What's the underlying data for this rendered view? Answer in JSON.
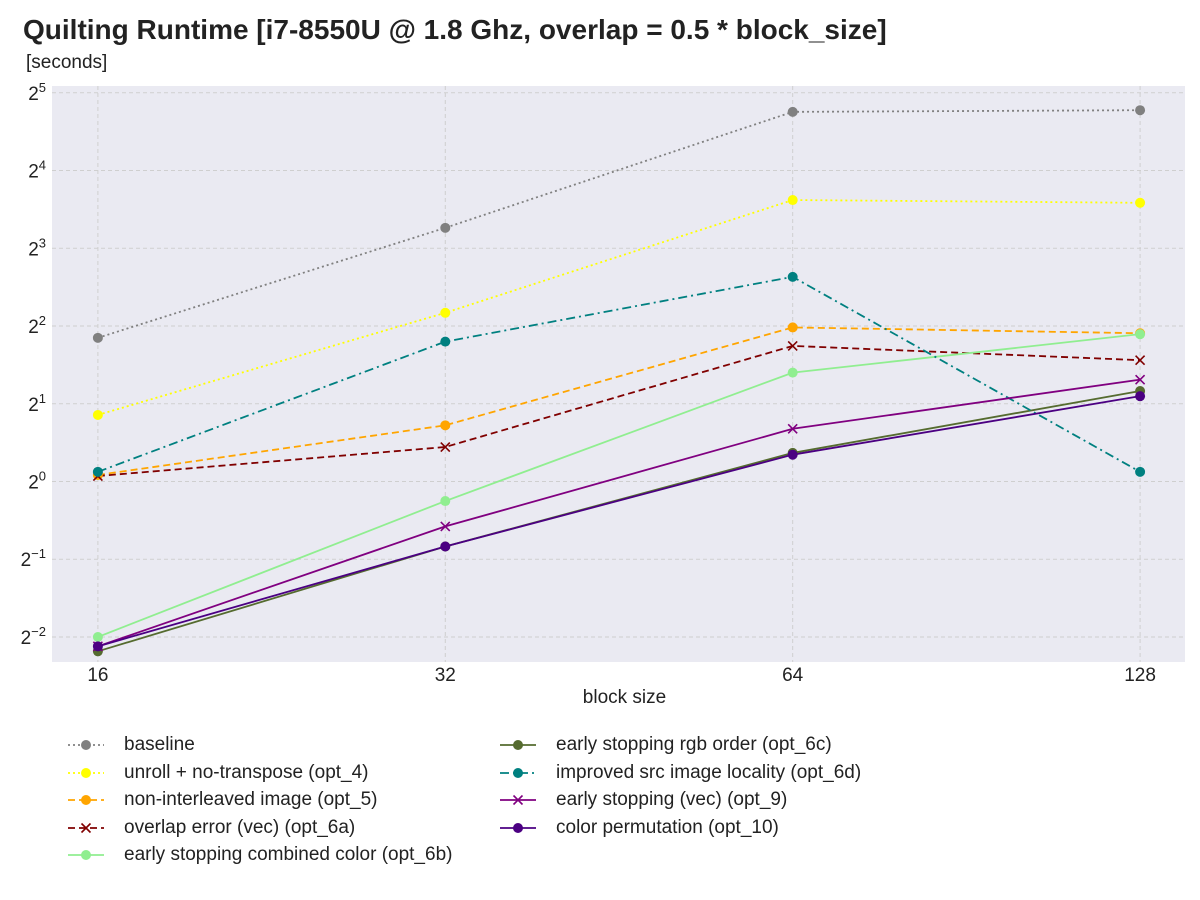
{
  "title": "Quilting Runtime [i7-8550U @ 1.8 Ghz, overlap = 0.5 * block_size]",
  "unit_label": "[seconds]",
  "chart_data": {
    "type": "line",
    "title": "Quilting Runtime [i7-8550U @ 1.8 Ghz, overlap = 0.5 * block_size]",
    "ylabel": "[seconds]",
    "xlabel": "block size",
    "x_scale": "log2",
    "y_scale": "log2",
    "x": [
      16,
      32,
      64,
      128
    ],
    "x_tick_labels": [
      "16",
      "32",
      "64",
      "128"
    ],
    "y_ticks": [
      {
        "base": "2",
        "exp": "5",
        "value": 32
      },
      {
        "base": "2",
        "exp": "4",
        "value": 16
      },
      {
        "base": "2",
        "exp": "3",
        "value": 8
      },
      {
        "base": "2",
        "exp": "2",
        "value": 4
      },
      {
        "base": "2",
        "exp": "1",
        "value": 2
      },
      {
        "base": "2",
        "exp": "0",
        "value": 1
      },
      {
        "base": "2",
        "exp": "−1",
        "value": 0.5
      },
      {
        "base": "2",
        "exp": "−2",
        "value": 0.25
      }
    ],
    "xlim": [
      14.6,
      140
    ],
    "ylim": [
      0.2,
      34
    ],
    "grid": true,
    "background": "#eaeaf2",
    "legend_position": "bottom",
    "series": [
      {
        "name": "baseline",
        "color": "#808080",
        "dash": "dotted",
        "marker": "circle",
        "values": [
          3.6,
          9.6,
          27.0,
          27.4
        ]
      },
      {
        "name": "unroll + no-transpose (opt_4)",
        "color": "#ffff00",
        "dash": "dotted",
        "marker": "circle",
        "values": [
          1.81,
          4.5,
          12.3,
          12.0
        ]
      },
      {
        "name": "non-interleaved image (opt_5)",
        "color": "#ffa500",
        "dash": "dashed",
        "marker": "circle",
        "values": [
          1.06,
          1.65,
          3.95,
          3.75
        ]
      },
      {
        "name": "overlap error (vec) (opt_6a)",
        "color": "#800000",
        "dash": "dashed",
        "marker": "x",
        "values": [
          1.05,
          1.36,
          3.35,
          2.95
        ]
      },
      {
        "name": "early stopping combined color (opt_6b)",
        "color": "#90ee90",
        "dash": "solid",
        "marker": "circle",
        "values": [
          0.25,
          0.84,
          2.64,
          3.72
        ]
      },
      {
        "name": "early stopping rgb order (opt_6c)",
        "color": "#556b2f",
        "dash": "solid",
        "marker": "circle",
        "values": [
          0.22,
          0.56,
          1.29,
          2.24
        ]
      },
      {
        "name": "improved src image locality (opt_6d)",
        "color": "#008080",
        "dash": "dashdot",
        "marker": "circle",
        "values": [
          1.09,
          3.48,
          6.2,
          1.09
        ]
      },
      {
        "name": "early stopping (vec) (opt_9)",
        "color": "#800080",
        "dash": "solid",
        "marker": "x",
        "values": [
          0.23,
          0.67,
          1.6,
          2.48
        ]
      },
      {
        "name": "color permutation (opt_10)",
        "color": "#4b0082",
        "dash": "solid",
        "marker": "circle",
        "values": [
          0.23,
          0.56,
          1.27,
          2.14
        ]
      }
    ]
  }
}
